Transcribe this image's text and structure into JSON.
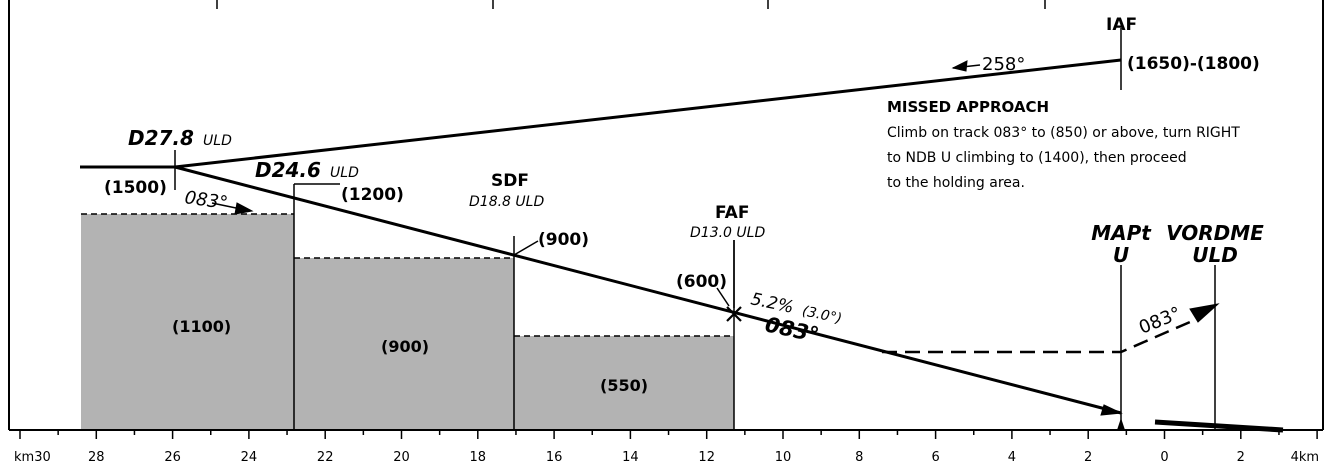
{
  "fixes": {
    "iaf": {
      "name": "IAF",
      "altitudes": "(1650)-(1800)"
    },
    "d278": {
      "dist": "D27.8",
      "ref": "ULD"
    },
    "d246": {
      "dist": "D24.6",
      "ref": "ULD"
    },
    "sdf": {
      "name": "SDF",
      "dist": "D18.8 ULD"
    },
    "faf": {
      "name": "FAF",
      "dist": "D13.0 ULD"
    },
    "mapt": {
      "line1": "MAPt",
      "line2": "U"
    },
    "vordme": {
      "line1": "VORDME",
      "line2": "ULD"
    }
  },
  "altitudes": {
    "a1500": "(1500)",
    "a1200": "(1200)",
    "a900": "(900)",
    "a600": "(600)"
  },
  "tracks": {
    "inbound_return": "258°",
    "initial": "083°",
    "final": "083°",
    "missed": "083°"
  },
  "gradient": {
    "percent": "5.2%",
    "angle": "(3.0°)"
  },
  "missed_approach": {
    "title": "MISSED APPROACH",
    "lines": [
      "Climb on track 083° to (850) or above, turn RIGHT",
      "to NDB U climbing to (1400), then proceed",
      "to the holding area."
    ]
  },
  "obstacle_blocks": [
    {
      "label": "(1100)",
      "from_km": 28.3,
      "to_km": 22.7
    },
    {
      "label": "(900)",
      "from_km": 22.7,
      "to_km": 16.9
    },
    {
      "label": "(550)",
      "from_km": 16.9,
      "to_km": 11.1
    }
  ],
  "distance_scale": {
    "ticks": [
      "km30",
      "28",
      "26",
      "24",
      "22",
      "20",
      "18",
      "16",
      "14",
      "12",
      "10",
      "8",
      "6",
      "4",
      "2",
      "0",
      "2",
      "4km"
    ]
  },
  "colors": {
    "ink": "#000000",
    "obstacle_fill": "#b3b3b3",
    "background": "#ffffff"
  }
}
